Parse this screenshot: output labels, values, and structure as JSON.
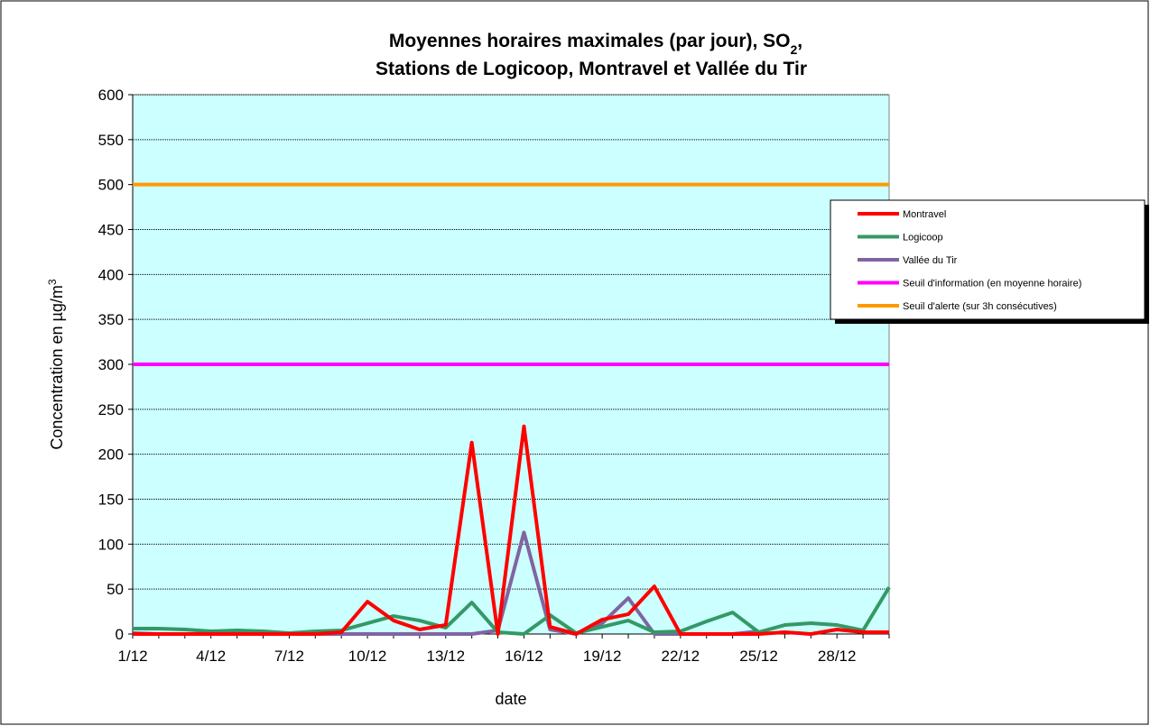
{
  "chart_data": {
    "type": "line",
    "title": {
      "line1": "Moyennes horaires maximales (par jour), SO",
      "line1_subscript": "2",
      "line1_end": ",",
      "line2": "Stations de Logicoop, Montravel et Vallée du Tir"
    },
    "y_label": {
      "text": "Concentration en µg/m",
      "superscript": "3"
    },
    "x_label": "date",
    "categories": [
      "1/12",
      null,
      null,
      "4/12",
      null,
      null,
      "7/12",
      null,
      null,
      "10/12",
      null,
      null,
      "13/12",
      null,
      null,
      "16/12",
      null,
      null,
      "19/12",
      null,
      null,
      "22/12",
      null,
      null,
      "25/12",
      null,
      null,
      "28/12",
      null,
      null
    ],
    "series": [
      {
        "name": "Montravel",
        "color": "#ff0000",
        "values": [
          0,
          0,
          0,
          0,
          0,
          0,
          0,
          0,
          2,
          36,
          15,
          5,
          10,
          213,
          0,
          231,
          8,
          0,
          16,
          22,
          53,
          0,
          0,
          0,
          0,
          2,
          0,
          5,
          2,
          2
        ]
      },
      {
        "name": "Logicoop",
        "color": "#339966",
        "values": [
          6,
          6,
          5,
          3,
          4,
          3,
          1,
          3,
          4,
          12,
          20,
          15,
          7,
          35,
          2,
          0,
          21,
          1,
          8,
          15,
          2,
          3,
          14,
          24,
          2,
          10,
          12,
          10,
          4,
          52
        ]
      },
      {
        "name": "Vallée du Tir",
        "color": "#8064a2",
        "values": [
          1,
          0,
          0,
          0,
          0,
          0,
          0,
          0,
          0,
          0,
          0,
          0,
          0,
          0,
          4,
          113,
          5,
          0,
          12,
          40,
          0,
          0,
          0,
          0,
          3,
          null,
          null,
          null,
          null,
          null
        ]
      },
      {
        "name": "Seuil d'information (en moyenne horaire)",
        "color": "#ff00ff",
        "values": [
          300,
          300,
          300,
          300,
          300,
          300,
          300,
          300,
          300,
          300,
          300,
          300,
          300,
          300,
          300,
          300,
          300,
          300,
          300,
          300,
          300,
          300,
          300,
          300,
          300,
          300,
          300,
          300,
          300,
          300
        ]
      },
      {
        "name": "Seuil d'alerte (sur 3h consécutives)",
        "color": "#ff9900",
        "values": [
          500,
          500,
          500,
          500,
          500,
          500,
          500,
          500,
          500,
          500,
          500,
          500,
          500,
          500,
          500,
          500,
          500,
          500,
          500,
          500,
          500,
          500,
          500,
          500,
          500,
          500,
          500,
          500,
          500,
          500
        ]
      }
    ],
    "ylim": [
      0,
      600
    ],
    "yticks": [
      0,
      50,
      100,
      150,
      200,
      250,
      300,
      350,
      400,
      450,
      500,
      550,
      600
    ],
    "grid": true,
    "legend": "right",
    "plot_background": "#ccffff"
  }
}
